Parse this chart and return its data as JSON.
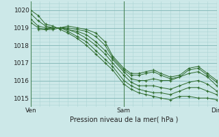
{
  "title": "Pression niveau de la mer( hPa )",
  "bg_color": "#cce8e8",
  "grid_major_color": "#88bbbb",
  "grid_minor_color": "#aad4d4",
  "line_color": "#2d6b2d",
  "ylim": [
    1014.5,
    1020.5
  ],
  "yticks": [
    1015,
    1016,
    1017,
    1018,
    1019,
    1020
  ],
  "xtick_labels": [
    "Ven",
    "Sam",
    "Dim"
  ],
  "xtick_pos": [
    0.0,
    0.5,
    1.0
  ],
  "xminor_count": 10,
  "series": [
    {
      "x": [
        0.0,
        0.04,
        0.08,
        0.12,
        0.16,
        0.2,
        0.25,
        0.3,
        0.35,
        0.4,
        0.44,
        0.5,
        0.54,
        0.58,
        0.62,
        0.66,
        0.7,
        0.75,
        0.8,
        0.85,
        0.9,
        0.95,
        1.0
      ],
      "y": [
        1020.0,
        1019.7,
        1019.2,
        1019.1,
        1018.9,
        1018.7,
        1018.4,
        1018.0,
        1017.5,
        1017.0,
        1016.6,
        1015.8,
        1015.5,
        1015.3,
        1015.2,
        1015.1,
        1015.0,
        1014.9,
        1015.1,
        1015.1,
        1015.0,
        1015.0,
        1014.9
      ]
    },
    {
      "x": [
        0.0,
        0.04,
        0.08,
        0.12,
        0.16,
        0.2,
        0.25,
        0.3,
        0.35,
        0.4,
        0.44,
        0.5,
        0.54,
        0.58,
        0.62,
        0.66,
        0.7,
        0.75,
        0.8,
        0.85,
        0.9,
        0.95,
        1.0
      ],
      "y": [
        1019.8,
        1019.4,
        1019.1,
        1019.0,
        1019.0,
        1018.8,
        1018.5,
        1018.2,
        1017.7,
        1017.2,
        1016.8,
        1016.0,
        1015.7,
        1015.5,
        1015.4,
        1015.3,
        1015.3,
        1015.2,
        1015.4,
        1015.6,
        1015.6,
        1015.4,
        1015.2
      ]
    },
    {
      "x": [
        0.0,
        0.04,
        0.08,
        0.12,
        0.16,
        0.2,
        0.25,
        0.3,
        0.35,
        0.4,
        0.44,
        0.5,
        0.54,
        0.58,
        0.62,
        0.66,
        0.7,
        0.75,
        0.8,
        0.85,
        0.9,
        0.95,
        1.0
      ],
      "y": [
        1019.5,
        1019.1,
        1019.0,
        1019.0,
        1019.0,
        1018.9,
        1018.7,
        1018.4,
        1018.0,
        1017.5,
        1017.0,
        1016.3,
        1015.9,
        1015.7,
        1015.7,
        1015.7,
        1015.6,
        1015.5,
        1015.7,
        1015.9,
        1016.0,
        1015.8,
        1015.4
      ]
    },
    {
      "x": [
        0.0,
        0.04,
        0.08,
        0.12,
        0.16,
        0.2,
        0.25,
        0.3,
        0.35,
        0.4,
        0.44,
        0.5,
        0.54,
        0.58,
        0.62,
        0.66,
        0.7,
        0.75,
        0.8,
        0.85,
        0.9,
        0.95,
        1.0
      ],
      "y": [
        1019.3,
        1019.0,
        1018.9,
        1018.9,
        1019.0,
        1018.9,
        1018.8,
        1018.6,
        1018.2,
        1017.7,
        1017.2,
        1016.5,
        1016.1,
        1016.0,
        1016.0,
        1016.1,
        1016.0,
        1016.0,
        1016.2,
        1016.4,
        1016.5,
        1016.2,
        1015.7
      ]
    },
    {
      "x": [
        0.04,
        0.08,
        0.12,
        0.16,
        0.2,
        0.25,
        0.3,
        0.35,
        0.4,
        0.44,
        0.5,
        0.54,
        0.58,
        0.62,
        0.66,
        0.7,
        0.75,
        0.8,
        0.85,
        0.9,
        0.95,
        1.0
      ],
      "y": [
        1018.9,
        1018.9,
        1019.0,
        1019.0,
        1019.0,
        1018.9,
        1018.8,
        1018.5,
        1018.0,
        1017.3,
        1016.6,
        1016.3,
        1016.3,
        1016.4,
        1016.5,
        1016.3,
        1016.1,
        1016.2,
        1016.6,
        1016.7,
        1016.3,
        1015.9
      ]
    },
    {
      "x": [
        0.08,
        0.12,
        0.16,
        0.2,
        0.25,
        0.3,
        0.35,
        0.4,
        0.44,
        0.5,
        0.54,
        0.58,
        0.62,
        0.66,
        0.7,
        0.75,
        0.8,
        0.85,
        0.9,
        0.95,
        1.0
      ],
      "y": [
        1018.9,
        1019.0,
        1019.0,
        1019.1,
        1019.0,
        1018.9,
        1018.7,
        1018.2,
        1017.4,
        1016.7,
        1016.4,
        1016.4,
        1016.5,
        1016.6,
        1016.4,
        1016.2,
        1016.3,
        1016.7,
        1016.8,
        1016.4,
        1016.0
      ]
    }
  ]
}
